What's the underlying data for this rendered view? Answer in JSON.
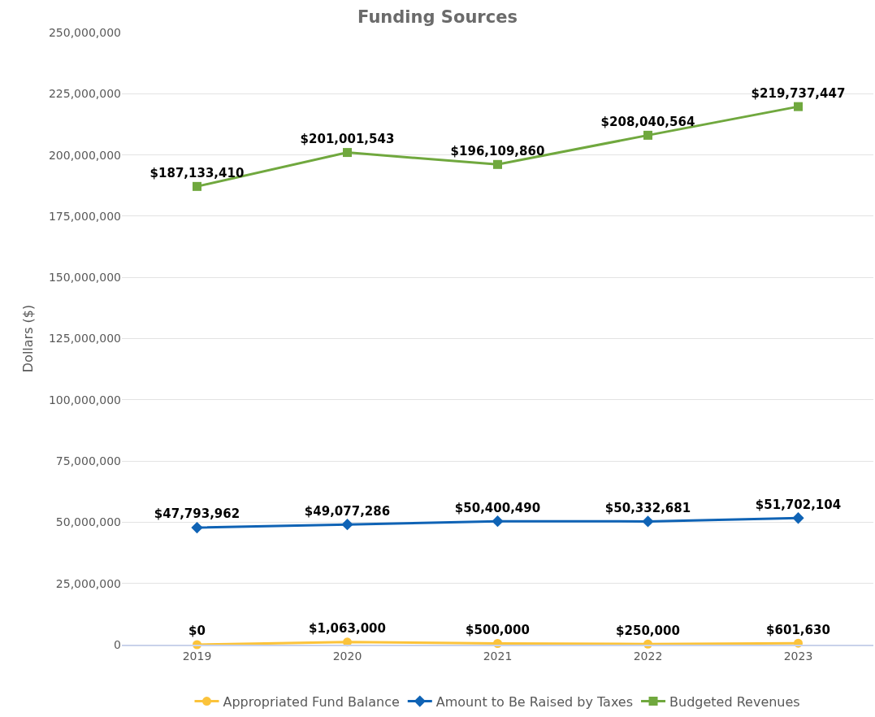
{
  "chart_data": {
    "type": "line",
    "title": "Funding Sources",
    "ylabel": "Dollars ($)",
    "categories": [
      "2019",
      "2020",
      "2021",
      "2022",
      "2023"
    ],
    "series": [
      {
        "name": "Appropriated Fund Balance",
        "color": "#fbc33b",
        "marker": "circle",
        "values": [
          0,
          1063000,
          500000,
          250000,
          601630
        ],
        "value_labels": [
          "$0",
          "$1,063,000",
          "$500,000",
          "$250,000",
          "$601,630"
        ]
      },
      {
        "name": "Amount to Be Raised by Taxes",
        "color": "#0f63b5",
        "marker": "diamond",
        "values": [
          47793962,
          49077286,
          50400490,
          50332681,
          51702104
        ],
        "value_labels": [
          "$47,793,962",
          "$49,077,286",
          "$50,400,490",
          "$50,332,681",
          "$51,702,104"
        ]
      },
      {
        "name": "Budgeted Revenues",
        "color": "#70a83e",
        "marker": "square",
        "values": [
          187133410,
          201001543,
          196109860,
          208040564,
          219737447
        ],
        "value_labels": [
          "$187,133,410",
          "$201,001,543",
          "$196,109,860",
          "$208,040,564",
          "$219,737,447"
        ]
      }
    ],
    "ylim": [
      0,
      250000000
    ],
    "yticks": [
      {
        "value": 0,
        "label": "0"
      },
      {
        "value": 25000000,
        "label": "25,000,000"
      },
      {
        "value": 50000000,
        "label": "50,000,000"
      },
      {
        "value": 75000000,
        "label": "75,000,000"
      },
      {
        "value": 100000000,
        "label": "100,000,000"
      },
      {
        "value": 125000000,
        "label": "125,000,000"
      },
      {
        "value": 150000000,
        "label": "150,000,000"
      },
      {
        "value": 175000000,
        "label": "175,000,000"
      },
      {
        "value": 200000000,
        "label": "200,000,000"
      },
      {
        "value": 225000000,
        "label": "225,000,000"
      },
      {
        "value": 250000000,
        "label": "250,000,000"
      }
    ],
    "grid": "y",
    "legend": "bottom",
    "line_style": "solid"
  }
}
